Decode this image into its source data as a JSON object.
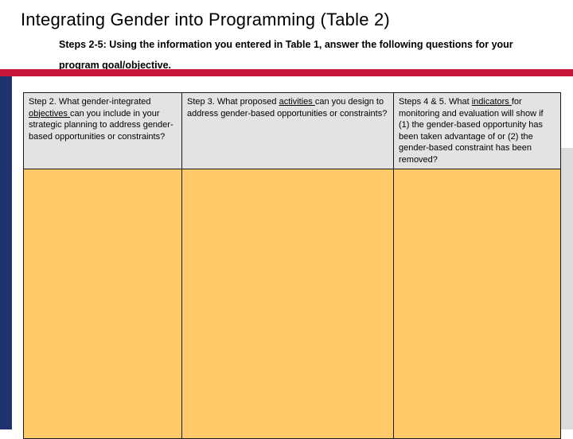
{
  "title": "Integrating Gender into Programming (Table 2)",
  "subtitle": "Steps 2-5: Using the information you entered in Table 1, answer the following questions for your program goal/objective.",
  "colors": {
    "header_bar": "#c8173b",
    "side_bar": "#1f3170",
    "header_cell": "#e3e3e3",
    "answer_cell": "#ffc869"
  },
  "table": {
    "columns": [
      {
        "before": "Step 2.  What gender-integrated ",
        "keyword": "objectives ",
        "after": "can you include in your strategic planning to address gender-based opportunities or constraints?"
      },
      {
        "before": "Step 3.  What proposed ",
        "keyword": "activities ",
        "after": "can you design to address gender-based opportunities or constraints?"
      },
      {
        "before": "Steps 4 & 5. What ",
        "keyword": "indicators ",
        "after": "for monitoring and evaluation will show if (1)  the gender-based opportunity has been taken advantage of or (2) the gender-based constraint has been removed?"
      }
    ]
  }
}
